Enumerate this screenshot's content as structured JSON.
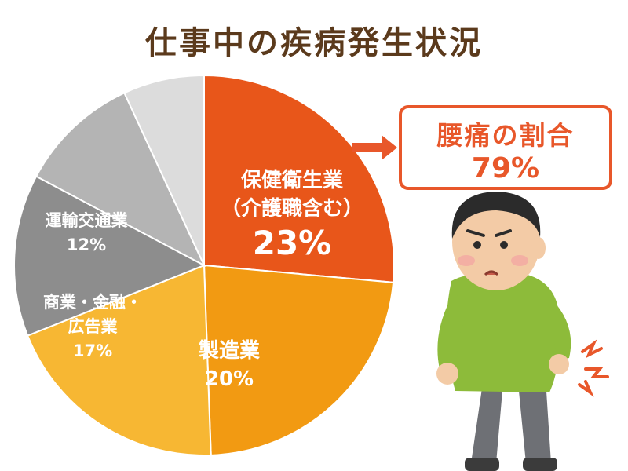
{
  "title": "仕事中の疾病発生状況",
  "callout": {
    "label": "腰痛の割合",
    "value": "79%"
  },
  "colors": {
    "title": "#5b3a1c",
    "accent": "#e8572a"
  },
  "chart_data": {
    "type": "pie",
    "title": "仕事中の疾病発生状況",
    "start_angle_deg": 0,
    "direction": "clockwise",
    "slices": [
      {
        "lines": [
          "保健衛生業",
          "（介護職含む）"
        ],
        "value_label": "23%",
        "value": 23,
        "color": "#e8561a",
        "text_color": "#ffffff"
      },
      {
        "lines": [
          "製造業"
        ],
        "value_label": "20%",
        "value": 20,
        "color": "#f29a12",
        "text_color": "#ffffff"
      },
      {
        "lines": [
          "商業・金融・",
          "広告業"
        ],
        "value_label": "17%",
        "value": 17,
        "color": "#f7b733",
        "text_color": "#ffffff"
      },
      {
        "lines": [
          "運輸交通業"
        ],
        "value_label": "12%",
        "value": 12,
        "color": "#8d8d8d",
        "text_color": "#ffffff"
      },
      {
        "lines": [],
        "value_label": "",
        "value": 9,
        "color": "#b4b4b4",
        "text_color": "#ffffff"
      },
      {
        "lines": [],
        "value_label": "",
        "value": 6,
        "color": "#dcdcdc",
        "text_color": "#ffffff"
      }
    ]
  }
}
